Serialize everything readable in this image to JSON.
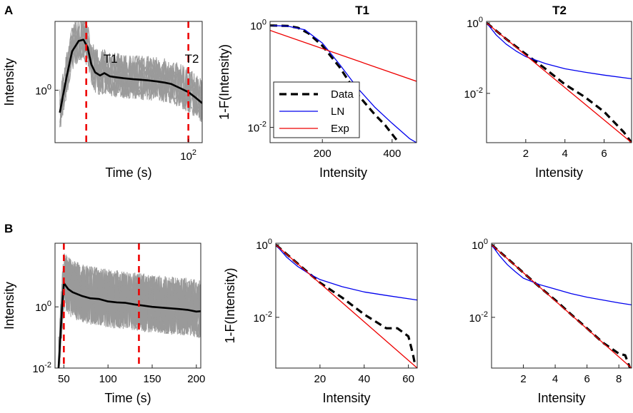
{
  "figure": {
    "panel_labels": [
      "A",
      "B"
    ],
    "col_titles": [
      "T1",
      "T2"
    ]
  },
  "colors": {
    "data": "#000000",
    "ln": "#0000ee",
    "exp": "#ee0000",
    "traces": "#9a9a9a",
    "marker": "#ee0000"
  },
  "chart_data": [
    {
      "id": "A1",
      "type": "line",
      "xlabel": "Time (s)",
      "ylabel": "Intensity",
      "xscale": "log",
      "yscale": "log",
      "xlim": [
        2,
        150
      ],
      "ylim": [
        0.06,
        40
      ],
      "xticks": [
        100
      ],
      "xticklabels": [
        {
          "base": "10",
          "exp": "2"
        }
      ],
      "yticks": [
        1
      ],
      "yticklabels": [
        {
          "base": "10",
          "exp": "0"
        }
      ],
      "markers": [
        {
          "x": 5,
          "label": "T1"
        },
        {
          "x": 100,
          "label": "T2"
        }
      ],
      "series": [
        {
          "name": "mean",
          "x": [
            2.3,
            2.8,
            3.3,
            4.0,
            4.6,
            5.2,
            5.8,
            6.5,
            7.5,
            8.5,
            10,
            12,
            15,
            20,
            25,
            30,
            40,
            50,
            60,
            80,
            100,
            120,
            150
          ],
          "y": [
            0.3,
            2,
            8,
            14,
            15,
            10,
            4,
            2.6,
            2.2,
            2.5,
            2.1,
            2.0,
            1.9,
            1.8,
            1.75,
            1.7,
            1.6,
            1.5,
            1.4,
            1.1,
            0.9,
            0.7,
            0.5
          ]
        }
      ]
    },
    {
      "id": "A2",
      "type": "line",
      "title": "T1",
      "xlabel": "Intensity",
      "ylabel": "1-F(Intensity)",
      "xscale": "linear",
      "yscale": "log",
      "xlim": [
        50,
        470
      ],
      "ylim": [
        0.005,
        1.2
      ],
      "xticks": [
        200,
        400
      ],
      "yticks": [
        1,
        0.01
      ],
      "yticklabels": [
        {
          "base": "10",
          "exp": "0"
        },
        {
          "base": "10",
          "exp": "-2"
        }
      ],
      "legend": {
        "position": "bottom-left",
        "entries": [
          "Data",
          "LN",
          "Exp"
        ]
      },
      "series": [
        {
          "name": "Data",
          "style": "dashed",
          "x": [
            50,
            100,
            130,
            160,
            200,
            250,
            300,
            350,
            380,
            410,
            420
          ],
          "y": [
            1.0,
            0.98,
            0.9,
            0.7,
            0.4,
            0.15,
            0.045,
            0.018,
            0.011,
            0.006,
            0.005
          ]
        },
        {
          "name": "LN",
          "x": [
            50,
            100,
            150,
            200,
            250,
            300,
            350,
            400,
            450,
            470
          ],
          "y": [
            1.0,
            0.97,
            0.82,
            0.45,
            0.17,
            0.06,
            0.025,
            0.012,
            0.006,
            0.005
          ]
        },
        {
          "name": "Exp",
          "x": [
            50,
            470
          ],
          "y": [
            0.8,
            0.08
          ]
        }
      ]
    },
    {
      "id": "A3",
      "type": "line",
      "title": "T2",
      "xlabel": "Intensity",
      "ylabel": "",
      "xscale": "linear",
      "yscale": "log",
      "xlim": [
        0,
        7.4
      ],
      "ylim": [
        0.0004,
        1.1
      ],
      "xticks": [
        2,
        4,
        6
      ],
      "yticks": [
        1,
        0.01
      ],
      "yticklabels": [
        {
          "base": "10",
          "exp": "0"
        },
        {
          "base": "10",
          "exp": "-2"
        }
      ],
      "series": [
        {
          "name": "Data",
          "style": "dashed",
          "x": [
            0,
            1,
            2,
            3,
            4,
            5,
            6,
            7,
            7.4
          ],
          "y": [
            1,
            0.35,
            0.13,
            0.05,
            0.018,
            0.008,
            0.003,
            0.0008,
            0.0004
          ]
        },
        {
          "name": "LN",
          "x": [
            0,
            0.5,
            1,
            1.5,
            2,
            3,
            4,
            5,
            6,
            7.4
          ],
          "y": [
            1,
            0.45,
            0.25,
            0.16,
            0.11,
            0.07,
            0.05,
            0.04,
            0.033,
            0.026
          ]
        },
        {
          "name": "Exp",
          "x": [
            0,
            7.4
          ],
          "y": [
            1,
            0.0004
          ]
        }
      ]
    },
    {
      "id": "B1",
      "type": "line",
      "xlabel": "Time (s)",
      "ylabel": "Intensity",
      "xscale": "linear",
      "yscale": "log",
      "xlim": [
        40,
        205
      ],
      "ylim": [
        0.01,
        120
      ],
      "xticks": [
        50,
        100,
        150,
        200
      ],
      "yticks": [
        1,
        0.01
      ],
      "yticklabels": [
        {
          "base": "10",
          "exp": "0"
        },
        {
          "base": "10",
          "exp": "-2"
        }
      ],
      "markers": [
        {
          "x": 50,
          "label": ""
        },
        {
          "x": 135,
          "label": ""
        }
      ],
      "series": [
        {
          "name": "mean",
          "x": [
            44,
            46,
            48,
            50,
            52,
            55,
            60,
            70,
            80,
            90,
            100,
            110,
            120,
            130,
            140,
            150,
            160,
            170,
            180,
            190,
            200,
            205
          ],
          "y": [
            0.01,
            0.1,
            1,
            6,
            5,
            3.8,
            3.0,
            2.3,
            1.9,
            1.8,
            1.5,
            1.4,
            1.35,
            1.2,
            1.1,
            1.0,
            0.95,
            0.9,
            0.85,
            0.8,
            0.7,
            0.72
          ]
        }
      ]
    },
    {
      "id": "B2",
      "type": "line",
      "xlabel": "Intensity",
      "ylabel": "1-F(Intensity)",
      "xscale": "linear",
      "yscale": "log",
      "xlim": [
        0,
        64
      ],
      "ylim": [
        0.0004,
        1.1
      ],
      "xticks": [
        20,
        40,
        60
      ],
      "yticks": [
        1,
        0.01
      ],
      "yticklabels": [
        {
          "base": "10",
          "exp": "0"
        },
        {
          "base": "10",
          "exp": "-2"
        }
      ],
      "series": [
        {
          "name": "Data",
          "style": "dashed",
          "x": [
            0,
            10,
            20,
            30,
            40,
            50,
            55,
            60,
            62,
            63
          ],
          "y": [
            1,
            0.3,
            0.09,
            0.035,
            0.012,
            0.005,
            0.005,
            0.003,
            0.001,
            0.0005
          ]
        },
        {
          "name": "LN",
          "x": [
            0,
            5,
            10,
            15,
            20,
            30,
            40,
            50,
            64
          ],
          "y": [
            1,
            0.45,
            0.25,
            0.16,
            0.11,
            0.07,
            0.05,
            0.04,
            0.03
          ]
        },
        {
          "name": "Exp",
          "x": [
            0,
            64
          ],
          "y": [
            1,
            0.0004
          ]
        }
      ]
    },
    {
      "id": "B3",
      "type": "line",
      "xlabel": "Intensity",
      "ylabel": "",
      "xscale": "linear",
      "yscale": "log",
      "xlim": [
        0,
        8.8
      ],
      "ylim": [
        0.0004,
        1.1
      ],
      "xticks": [
        2,
        4,
        6,
        8
      ],
      "yticks": [
        1,
        0.01
      ],
      "yticklabels": [
        {
          "base": "10",
          "exp": "0"
        },
        {
          "base": "10",
          "exp": "-2"
        }
      ],
      "series": [
        {
          "name": "Data",
          "style": "dashed",
          "x": [
            0,
            1,
            2,
            3,
            4,
            5,
            6,
            7,
            8,
            8.4,
            8.7
          ],
          "y": [
            1,
            0.42,
            0.17,
            0.07,
            0.03,
            0.012,
            0.005,
            0.002,
            0.001,
            0.0009,
            0.0004
          ]
        },
        {
          "name": "LN",
          "x": [
            0,
            0.5,
            1,
            1.5,
            2,
            3,
            4,
            5,
            6,
            7,
            8,
            8.8
          ],
          "y": [
            1,
            0.5,
            0.28,
            0.18,
            0.12,
            0.08,
            0.06,
            0.045,
            0.036,
            0.03,
            0.025,
            0.022
          ]
        },
        {
          "name": "Exp",
          "x": [
            0,
            8.8
          ],
          "y": [
            1,
            0.0004
          ]
        }
      ]
    }
  ]
}
